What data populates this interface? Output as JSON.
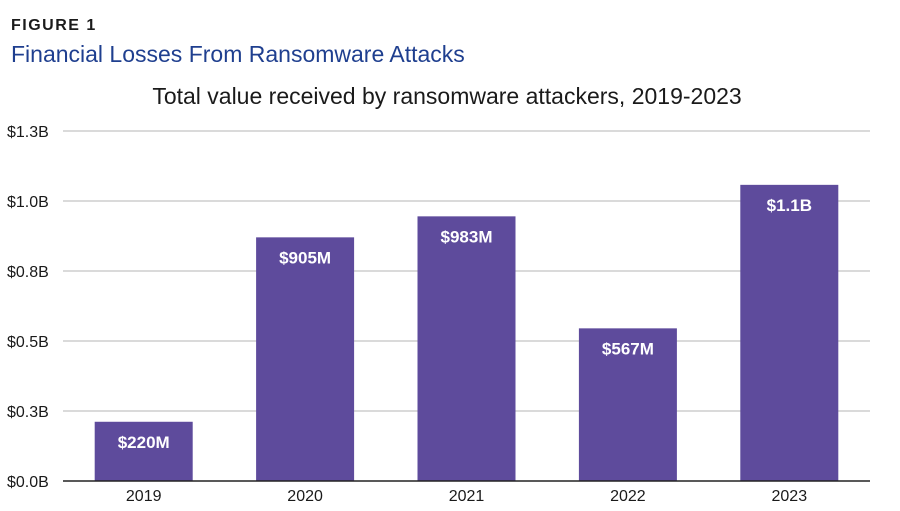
{
  "figure": {
    "label": "FIGURE 1",
    "title": "Financial Losses From Ransomware Attacks"
  },
  "colors": {
    "bar": "#5e4b9c",
    "grid": "#b5b5b5",
    "axis": "#222222"
  },
  "chart_data": {
    "type": "bar",
    "title": "Total value received by ransomware attackers, 2019-2023",
    "xlabel": "",
    "ylabel": "",
    "categories": [
      "2019",
      "2020",
      "2021",
      "2022",
      "2023"
    ],
    "values": [
      220,
      905,
      983,
      567,
      1100
    ],
    "value_unit": "millions USD",
    "data_labels": [
      "$220M",
      "$905M",
      "$983M",
      "$567M",
      "$1.1B"
    ],
    "ylim": [
      0,
      1300
    ],
    "yticks": [
      0,
      260,
      520,
      780,
      1040,
      1300
    ],
    "ytick_labels": [
      "$0.0B",
      "$0.3B",
      "$0.5B",
      "$0.8B",
      "$1.0B",
      "$1.3B"
    ],
    "grid": true,
    "legend": "none"
  }
}
